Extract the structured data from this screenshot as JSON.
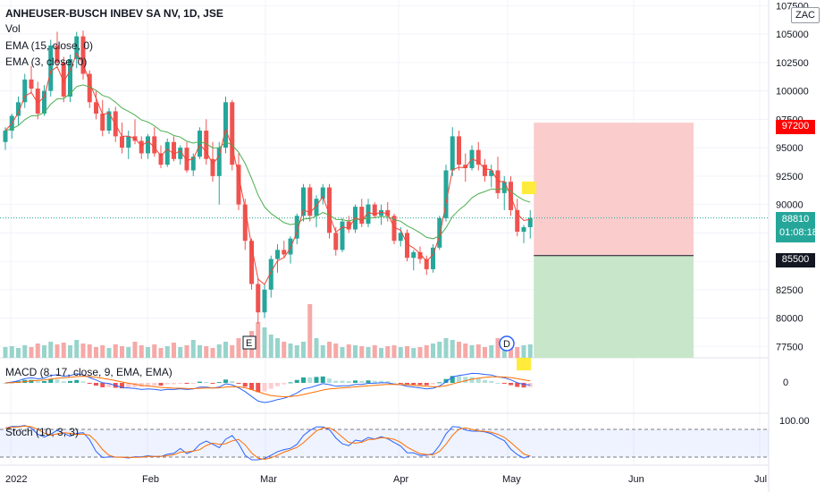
{
  "header": {
    "symbol": "ANHEUSER-BUSCH INBEV SA NV, 1D, JSE",
    "vol": "Vol",
    "ema15": "EMA (15, close, 0)",
    "ema3": "EMA (3, close, 0)",
    "currency": "ZAC"
  },
  "macd_label": "MACD (8, 17, close, 9, EMA, EMA)",
  "stoch_label": "Stoch (10, 3, 3)",
  "price_axis": {
    "ticks": [
      "107500",
      "105000",
      "102500",
      "100000",
      "97500",
      "95000",
      "92500",
      "90000",
      "87500",
      "85000",
      "82500",
      "80000",
      "77500"
    ],
    "tick_values": [
      107500,
      105000,
      102500,
      100000,
      97500,
      95000,
      92500,
      90000,
      87500,
      85000,
      82500,
      80000,
      77500
    ],
    "macd_tick": "0",
    "stoch_tick": "100.00"
  },
  "time_axis": {
    "labels": [
      "2022",
      "Feb",
      "Mar",
      "Apr",
      "May",
      "Jun",
      "Jul"
    ]
  },
  "tags": {
    "stop": "97200",
    "last_price": "88810",
    "countdown": "01:08:18",
    "target": "85500"
  },
  "markers": {
    "earnings": "E",
    "dividend": "D"
  },
  "colors": {
    "up": "#26a69a",
    "down": "#ef5350",
    "ema15": "#4caf50",
    "ema3": "#f44336",
    "macd": "#2962ff",
    "signal": "#ff6d00",
    "stoch_k": "#2962ff",
    "stoch_d": "#ff6d00",
    "stop_zone": "#f9c7c6",
    "target_zone": "#c8e6c9"
  },
  "chart_data": {
    "type": "candlestick",
    "title": "ANHEUSER-BUSCH INBEV SA NV, 1D, JSE",
    "ylim": [
      76500,
      108000
    ],
    "candles": [
      [
        95500,
        96800,
        94800,
        96500
      ],
      [
        96500,
        98000,
        95800,
        97800
      ],
      [
        97800,
        99500,
        97000,
        99000
      ],
      [
        99000,
        101500,
        98500,
        101000
      ],
      [
        101000,
        102200,
        99800,
        100200
      ],
      [
        100200,
        100800,
        97500,
        98000
      ],
      [
        98000,
        100500,
        97800,
        100000
      ],
      [
        100000,
        104500,
        99500,
        104000
      ],
      [
        104000,
        105200,
        102000,
        102500
      ],
      [
        102500,
        103000,
        99000,
        99500
      ],
      [
        99500,
        103200,
        99000,
        102800
      ],
      [
        102800,
        105200,
        102000,
        104800
      ],
      [
        104800,
        105300,
        101000,
        101500
      ],
      [
        101500,
        101800,
        98500,
        99000
      ],
      [
        99000,
        100000,
        97500,
        98000
      ],
      [
        98000,
        99200,
        96000,
        96500
      ],
      [
        96500,
        98500,
        96200,
        98200
      ],
      [
        98200,
        98600,
        95500,
        96000
      ],
      [
        96000,
        97200,
        94500,
        95000
      ],
      [
        95000,
        96500,
        94000,
        96000
      ],
      [
        96000,
        97500,
        95300,
        95600
      ],
      [
        95600,
        96000,
        94000,
        94500
      ],
      [
        94500,
        96200,
        94000,
        96000
      ],
      [
        96000,
        96800,
        94200,
        94500
      ],
      [
        94500,
        95200,
        93200,
        93500
      ],
      [
        93500,
        95800,
        93300,
        95500
      ],
      [
        95500,
        96000,
        93800,
        94000
      ],
      [
        94000,
        95200,
        93500,
        95000
      ],
      [
        95000,
        95500,
        92800,
        93000
      ],
      [
        93000,
        94500,
        92500,
        94200
      ],
      [
        94200,
        96800,
        94000,
        96500
      ],
      [
        96500,
        97500,
        93500,
        94000
      ],
      [
        94000,
        95500,
        92000,
        92500
      ],
      [
        92500,
        95500,
        90000,
        95000
      ],
      [
        95000,
        99500,
        94500,
        99000
      ],
      [
        99000,
        99200,
        93000,
        93500
      ],
      [
        93500,
        94500,
        89500,
        90000
      ],
      [
        90000,
        90500,
        86000,
        86800
      ],
      [
        86800,
        87000,
        82500,
        83000
      ],
      [
        83000,
        83500,
        79500,
        80500
      ],
      [
        80500,
        83000,
        80000,
        82500
      ],
      [
        82500,
        85500,
        81800,
        85200
      ],
      [
        85200,
        86500,
        84000,
        86000
      ],
      [
        86000,
        86800,
        85300,
        85600
      ],
      [
        85600,
        87200,
        84800,
        87000
      ],
      [
        87000,
        89200,
        86500,
        89000
      ],
      [
        89000,
        91800,
        88500,
        91500
      ],
      [
        91500,
        91800,
        88500,
        89000
      ],
      [
        89000,
        90800,
        88000,
        90500
      ],
      [
        90500,
        91800,
        90000,
        91500
      ],
      [
        91500,
        91800,
        87000,
        87500
      ],
      [
        87500,
        88000,
        85500,
        86000
      ],
      [
        86000,
        88800,
        85800,
        88500
      ],
      [
        88500,
        89000,
        87500,
        87800
      ],
      [
        87800,
        90000,
        87500,
        89800
      ],
      [
        89800,
        90500,
        88000,
        88300
      ],
      [
        88300,
        90500,
        88000,
        90000
      ],
      [
        90000,
        90200,
        88800,
        89000
      ],
      [
        89000,
        90000,
        88200,
        89500
      ],
      [
        89500,
        90200,
        88500,
        89000
      ],
      [
        89000,
        89200,
        86500,
        86800
      ],
      [
        86800,
        88000,
        86300,
        87500
      ],
      [
        87500,
        87800,
        85000,
        85300
      ],
      [
        85300,
        86000,
        84200,
        85800
      ],
      [
        85800,
        86300,
        84800,
        85200
      ],
      [
        85200,
        85500,
        83800,
        84300
      ],
      [
        84300,
        86500,
        84000,
        86200
      ],
      [
        86200,
        89000,
        86000,
        88800
      ],
      [
        88800,
        93500,
        88500,
        93000
      ],
      [
        93000,
        96800,
        92500,
        96000
      ],
      [
        96000,
        96500,
        93000,
        93500
      ],
      [
        93500,
        94500,
        92000,
        93200
      ],
      [
        93200,
        95200,
        93000,
        94800
      ],
      [
        94800,
        95500,
        93000,
        93500
      ],
      [
        93500,
        94000,
        92000,
        92500
      ],
      [
        92500,
        93500,
        91500,
        93000
      ],
      [
        93000,
        94200,
        90500,
        91000
      ],
      [
        91000,
        92500,
        89500,
        92000
      ],
      [
        92000,
        92500,
        89000,
        89500
      ],
      [
        89500,
        90500,
        87200,
        87600
      ],
      [
        87600,
        88200,
        86600,
        88000
      ],
      [
        88000,
        89500,
        87000,
        88810
      ]
    ],
    "volume_pct": [
      12,
      13,
      11,
      14,
      12,
      16,
      14,
      18,
      15,
      17,
      14,
      20,
      16,
      15,
      12,
      14,
      11,
      15,
      13,
      12,
      18,
      14,
      12,
      15,
      11,
      13,
      17,
      12,
      14,
      20,
      14,
      13,
      11,
      15,
      18,
      14,
      22,
      20,
      30,
      40,
      34,
      26,
      22,
      18,
      16,
      14,
      18,
      60,
      22,
      14,
      18,
      16,
      12,
      15,
      14,
      13,
      12,
      14,
      11,
      13,
      14,
      12,
      13,
      11,
      12,
      14,
      16,
      18,
      22,
      20,
      18,
      16,
      14,
      15,
      12,
      14,
      22,
      16,
      18,
      12,
      14,
      15
    ],
    "positions": [
      {
        "type": "short",
        "entry": 88810,
        "stop": 97200,
        "target": 85500
      }
    ],
    "series": [
      {
        "name": "MACD (8, 17, close, 9, EMA, EMA)",
        "type": "histogram+lines"
      },
      {
        "name": "Stoch (10, 3, 3)",
        "type": "lines",
        "levels": [
          80,
          20
        ]
      }
    ]
  }
}
